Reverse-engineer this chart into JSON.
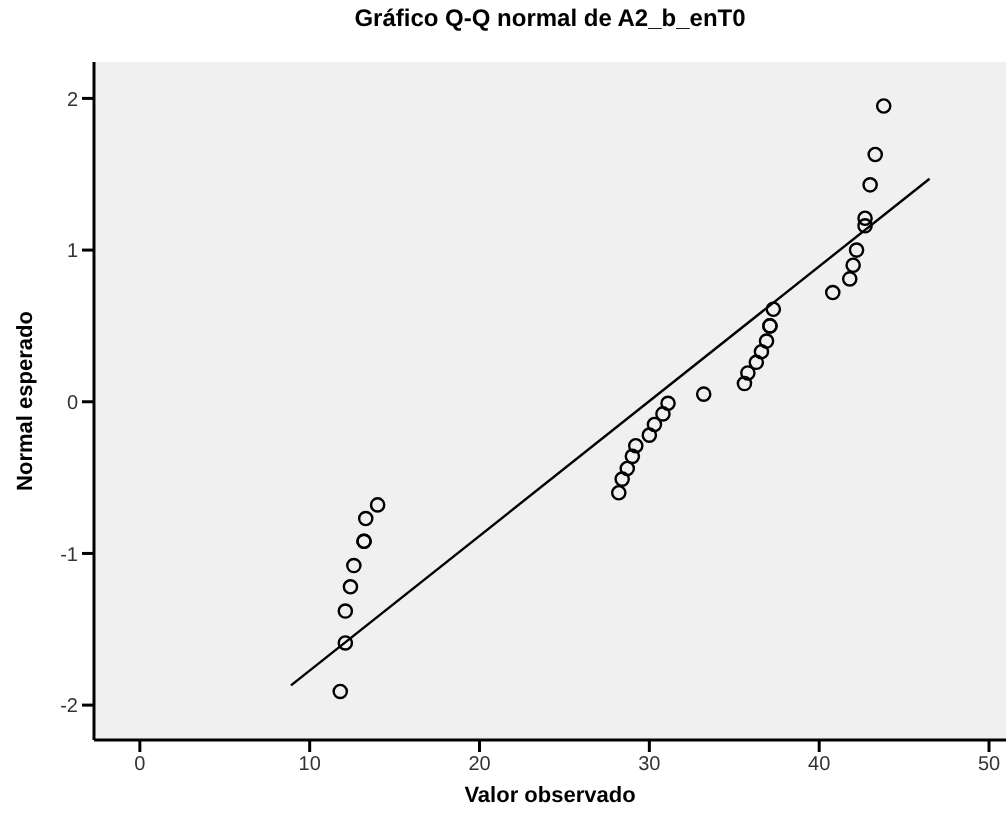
{
  "chart_data": {
    "type": "scatter",
    "title": "Gráfico Q-Q normal de A2_b_enT0",
    "xlabel": "Valor observado",
    "ylabel": "Normal esperado",
    "xlim": [
      -2.7,
      51
    ],
    "ylim": [
      -2.23,
      2.24
    ],
    "xticks": [
      0,
      10,
      20,
      30,
      40,
      50
    ],
    "yticks": [
      -2,
      -1,
      0,
      1,
      2
    ],
    "grid": false,
    "legend": false,
    "series": [
      {
        "color": "#000000",
        "marker": "circle",
        "x": [
          11.8,
          12.1,
          12.1,
          12.4,
          12.6,
          13.2,
          13.2,
          13.3,
          14.0,
          28.2,
          28.4,
          28.7,
          29.0,
          29.2,
          30.0,
          30.3,
          30.8,
          31.1,
          33.2,
          35.6,
          35.8,
          36.3,
          36.6,
          36.9,
          37.1,
          37.1,
          37.3,
          40.8,
          41.8,
          42.0,
          42.2,
          42.7,
          42.7,
          43.0,
          43.3,
          43.8
        ],
        "values": [
          -1.91,
          -1.59,
          -1.38,
          -1.22,
          -1.08,
          -0.92,
          -0.92,
          -0.77,
          -0.68,
          -0.6,
          -0.51,
          -0.44,
          -0.36,
          -0.29,
          -0.22,
          -0.15,
          -0.08,
          -0.01,
          0.05,
          0.12,
          0.19,
          0.26,
          0.33,
          0.4,
          0.5,
          0.5,
          0.61,
          0.72,
          0.81,
          0.9,
          1.0,
          1.16,
          1.21,
          1.43,
          1.63,
          1.95
        ]
      },
      {
        "type": "line",
        "color": "#000000",
        "line_style": "solid",
        "marker": "none",
        "x": [
          8.9,
          46.5
        ],
        "values": [
          -1.87,
          1.47
        ]
      }
    ]
  }
}
